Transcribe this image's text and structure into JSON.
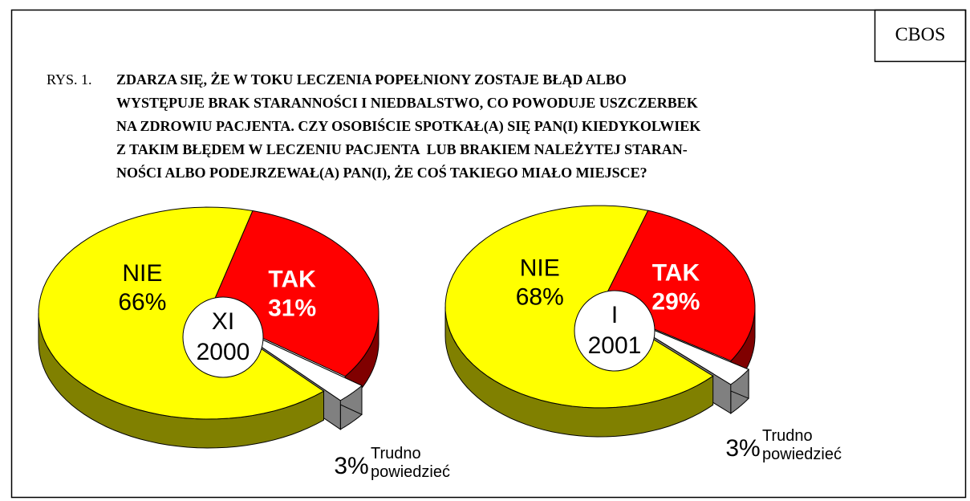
{
  "source": "CBOS",
  "figure_label": "RYS. 1.",
  "title_lines": [
    "ZDARZA SIĘ, ŻE W TOKU LECZENIA POPEŁNIONY ZOSTAJE BŁĄD ALBO",
    "WYSTĘPUJE BRAK STARANNOŚCI I NIEDBALSTWO, CO POWODUJE USZCZERBEK",
    "NA ZDROWIU PACJENTA. CZY OSOBIŚCIE SPOTKAŁ(A) SIĘ PAN(I) KIEDYKOLWIEK",
    "Z TAKIM BŁĘDEM W LECZENIU PACJENTA  LUB BRAKIEM NALEŻYTEJ STARAN-",
    "NOŚCI ALBO PODEJRZEWAŁ(A) PAN(I), ŻE COŚ TAKIEGO MIAŁO MIEJSCE?"
  ],
  "chart_data": [
    {
      "type": "pie",
      "center_label": [
        "XI",
        "2000"
      ],
      "categories": [
        "TAK",
        "Trudno powiedzieć",
        "NIE"
      ],
      "values": [
        31,
        3,
        66
      ],
      "value_labels": [
        "31%",
        "3%",
        "66%"
      ],
      "colors": [
        "#ff0000",
        "#ffffff",
        "#ffff00"
      ]
    },
    {
      "type": "pie",
      "center_label": [
        "I",
        "2001"
      ],
      "categories": [
        "TAK",
        "Trudno powiedzieć",
        "NIE"
      ],
      "values": [
        29,
        3,
        68
      ],
      "value_labels": [
        "29%",
        "3%",
        "68%"
      ],
      "colors": [
        "#ff0000",
        "#ffffff",
        "#ffff00"
      ]
    }
  ]
}
